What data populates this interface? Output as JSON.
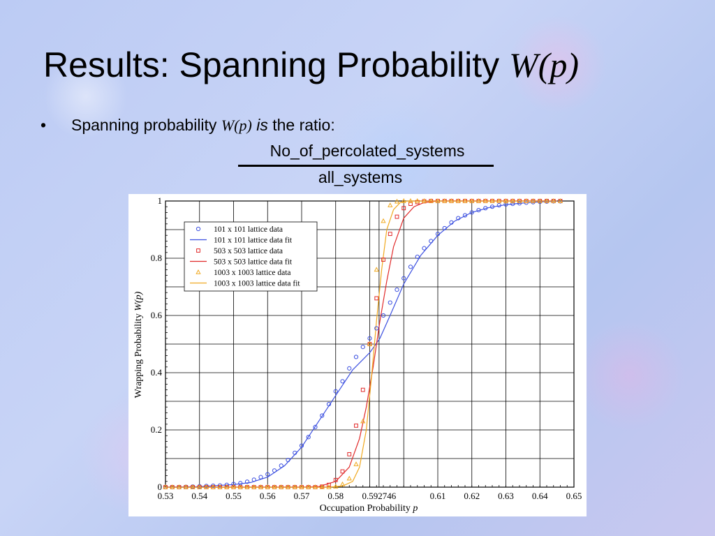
{
  "slide": {
    "title_text": "Results: Spanning Probability ",
    "title_math": "W(p)",
    "bullet_symbol": "•",
    "bullet_text": "Spanning probability ",
    "bullet_math": "W(p)",
    "bullet_is": "is",
    "bullet_rest": " the ratio:",
    "numerator": "No_of_percolated_systems",
    "denominator": "all_systems"
  },
  "colors": {
    "blue": "#3c50e0",
    "red": "#e02828",
    "orange": "#f0a81e",
    "grid": "#000000"
  },
  "chart_data": {
    "type": "scatter",
    "xlabel": "Occupation Probability",
    "xlabel_var": "p",
    "ylabel": "Wrapping Probability",
    "ylabel_var": "W(p)",
    "xlim": [
      0.53,
      0.65
    ],
    "ylim": [
      0,
      1
    ],
    "grid": true,
    "legend_position": "top-left",
    "x_ticks": [
      0.53,
      0.54,
      0.55,
      0.56,
      0.57,
      0.58,
      0.592746,
      0.61,
      0.62,
      0.63,
      0.64,
      0.65
    ],
    "x_tick_labels": [
      "0.53",
      "0.54",
      "0.55",
      "0.56",
      "0.57",
      "0.58",
      "0.592746",
      "0.61",
      "0.62",
      "0.63",
      "0.64",
      "0.65"
    ],
    "y_ticks": [
      0,
      0.2,
      0.4,
      0.6,
      0.8,
      1
    ],
    "y_tick_labels": [
      "0",
      "0.2",
      "0.4",
      "0.6",
      "0.8",
      "1"
    ],
    "series": [
      {
        "name": "101 x 101 lattice data",
        "kind": "markers",
        "marker": "circle",
        "color": "#3c50e0",
        "x": [
          0.53,
          0.532,
          0.534,
          0.536,
          0.538,
          0.54,
          0.542,
          0.544,
          0.546,
          0.548,
          0.55,
          0.552,
          0.554,
          0.556,
          0.558,
          0.56,
          0.562,
          0.564,
          0.566,
          0.568,
          0.57,
          0.572,
          0.574,
          0.576,
          0.578,
          0.58,
          0.582,
          0.584,
          0.586,
          0.588,
          0.59,
          0.592,
          0.594,
          0.596,
          0.598,
          0.6,
          0.602,
          0.604,
          0.606,
          0.608,
          0.61,
          0.612,
          0.614,
          0.616,
          0.618,
          0.62,
          0.622,
          0.624,
          0.626,
          0.628,
          0.63,
          0.632,
          0.634,
          0.636,
          0.638,
          0.64,
          0.642,
          0.644,
          0.646
        ],
        "y": [
          0.0,
          0.0,
          0.0,
          0.001,
          0.002,
          0.003,
          0.004,
          0.005,
          0.006,
          0.008,
          0.011,
          0.014,
          0.019,
          0.026,
          0.035,
          0.045,
          0.058,
          0.075,
          0.095,
          0.12,
          0.145,
          0.175,
          0.21,
          0.25,
          0.29,
          0.335,
          0.37,
          0.415,
          0.455,
          0.49,
          0.52,
          0.555,
          0.6,
          0.645,
          0.69,
          0.73,
          0.77,
          0.805,
          0.835,
          0.86,
          0.885,
          0.905,
          0.925,
          0.94,
          0.95,
          0.96,
          0.968,
          0.975,
          0.98,
          0.985,
          0.988,
          0.99,
          0.992,
          0.994,
          0.996,
          0.997,
          0.998,
          0.999,
          0.999
        ]
      },
      {
        "name": "101 x 101 lattice data fit",
        "kind": "line",
        "color": "#3c50e0",
        "x": [
          0.53,
          0.54,
          0.55,
          0.555,
          0.56,
          0.565,
          0.57,
          0.575,
          0.58,
          0.585,
          0.59,
          0.593,
          0.596,
          0.6,
          0.605,
          0.61,
          0.615,
          0.62,
          0.625,
          0.63,
          0.635,
          0.64,
          0.645
        ],
        "y": [
          0.0,
          0.002,
          0.009,
          0.016,
          0.035,
          0.075,
          0.14,
          0.23,
          0.32,
          0.41,
          0.47,
          0.52,
          0.6,
          0.71,
          0.81,
          0.88,
          0.93,
          0.96,
          0.977,
          0.987,
          0.993,
          0.997,
          0.999
        ]
      },
      {
        "name": "503 x 503 lattice data",
        "kind": "markers",
        "marker": "square",
        "color": "#e02828",
        "x": [
          0.53,
          0.532,
          0.534,
          0.536,
          0.538,
          0.54,
          0.542,
          0.544,
          0.546,
          0.548,
          0.55,
          0.552,
          0.554,
          0.556,
          0.558,
          0.56,
          0.562,
          0.564,
          0.566,
          0.568,
          0.57,
          0.572,
          0.574,
          0.576,
          0.578,
          0.58,
          0.582,
          0.584,
          0.586,
          0.588,
          0.59,
          0.592,
          0.594,
          0.596,
          0.598,
          0.6,
          0.602,
          0.604,
          0.606,
          0.608,
          0.61,
          0.612,
          0.614,
          0.616,
          0.618,
          0.62,
          0.622,
          0.624,
          0.626,
          0.628,
          0.63,
          0.632,
          0.634,
          0.636,
          0.638,
          0.64,
          0.642,
          0.644,
          0.646
        ],
        "y": [
          0,
          0,
          0,
          0,
          0,
          0,
          0,
          0,
          0,
          0,
          0,
          0,
          0,
          0,
          0,
          0,
          0,
          0,
          0,
          0,
          0,
          0,
          0,
          0.002,
          0.008,
          0.025,
          0.055,
          0.115,
          0.215,
          0.34,
          0.5,
          0.66,
          0.795,
          0.885,
          0.945,
          0.975,
          0.99,
          0.996,
          0.999,
          1,
          1,
          1,
          1,
          1,
          1,
          1,
          1,
          1,
          1,
          1,
          1,
          1,
          1,
          1,
          1,
          1,
          1,
          1,
          1
        ]
      },
      {
        "name": "503 x 503 lattice data fit",
        "kind": "line",
        "color": "#e02828",
        "x": [
          0.53,
          0.57,
          0.575,
          0.58,
          0.584,
          0.587,
          0.589,
          0.591,
          0.593,
          0.595,
          0.597,
          0.6,
          0.603,
          0.606,
          0.61,
          0.645
        ],
        "y": [
          0,
          0,
          0.002,
          0.02,
          0.07,
          0.17,
          0.28,
          0.42,
          0.58,
          0.72,
          0.84,
          0.94,
          0.98,
          0.995,
          1,
          1
        ]
      },
      {
        "name": "1003 x 1003 lattice data",
        "kind": "markers",
        "marker": "triangle",
        "color": "#f0a81e",
        "x": [
          0.53,
          0.532,
          0.534,
          0.536,
          0.538,
          0.54,
          0.542,
          0.544,
          0.546,
          0.548,
          0.55,
          0.552,
          0.554,
          0.556,
          0.558,
          0.56,
          0.562,
          0.564,
          0.566,
          0.568,
          0.57,
          0.572,
          0.574,
          0.576,
          0.578,
          0.58,
          0.582,
          0.584,
          0.586,
          0.588,
          0.59,
          0.592,
          0.594,
          0.596,
          0.598,
          0.6,
          0.602,
          0.604,
          0.606,
          0.608,
          0.61,
          0.612,
          0.614,
          0.616,
          0.618,
          0.62,
          0.622,
          0.624,
          0.626,
          0.628,
          0.63,
          0.632,
          0.634,
          0.636,
          0.638,
          0.64,
          0.642,
          0.644,
          0.646
        ],
        "y": [
          0,
          0,
          0,
          0,
          0,
          0,
          0,
          0,
          0,
          0,
          0,
          0,
          0,
          0,
          0,
          0,
          0,
          0,
          0,
          0,
          0,
          0,
          0,
          0,
          0,
          0.002,
          0.01,
          0.03,
          0.08,
          0.23,
          0.5,
          0.76,
          0.93,
          0.985,
          0.998,
          1,
          1,
          1,
          1,
          1,
          1,
          1,
          1,
          1,
          1,
          1,
          1,
          1,
          1,
          1,
          1,
          1,
          1,
          1,
          1,
          1,
          1,
          1,
          1
        ]
      },
      {
        "name": "1003 x 1003 lattice data fit",
        "kind": "line",
        "color": "#f0a81e",
        "x": [
          0.53,
          0.578,
          0.582,
          0.585,
          0.587,
          0.589,
          0.5905,
          0.592,
          0.5935,
          0.595,
          0.597,
          0.599,
          0.601,
          0.645
        ],
        "y": [
          0,
          0,
          0.004,
          0.02,
          0.07,
          0.2,
          0.38,
          0.58,
          0.76,
          0.9,
          0.97,
          0.995,
          1,
          1
        ]
      }
    ]
  }
}
